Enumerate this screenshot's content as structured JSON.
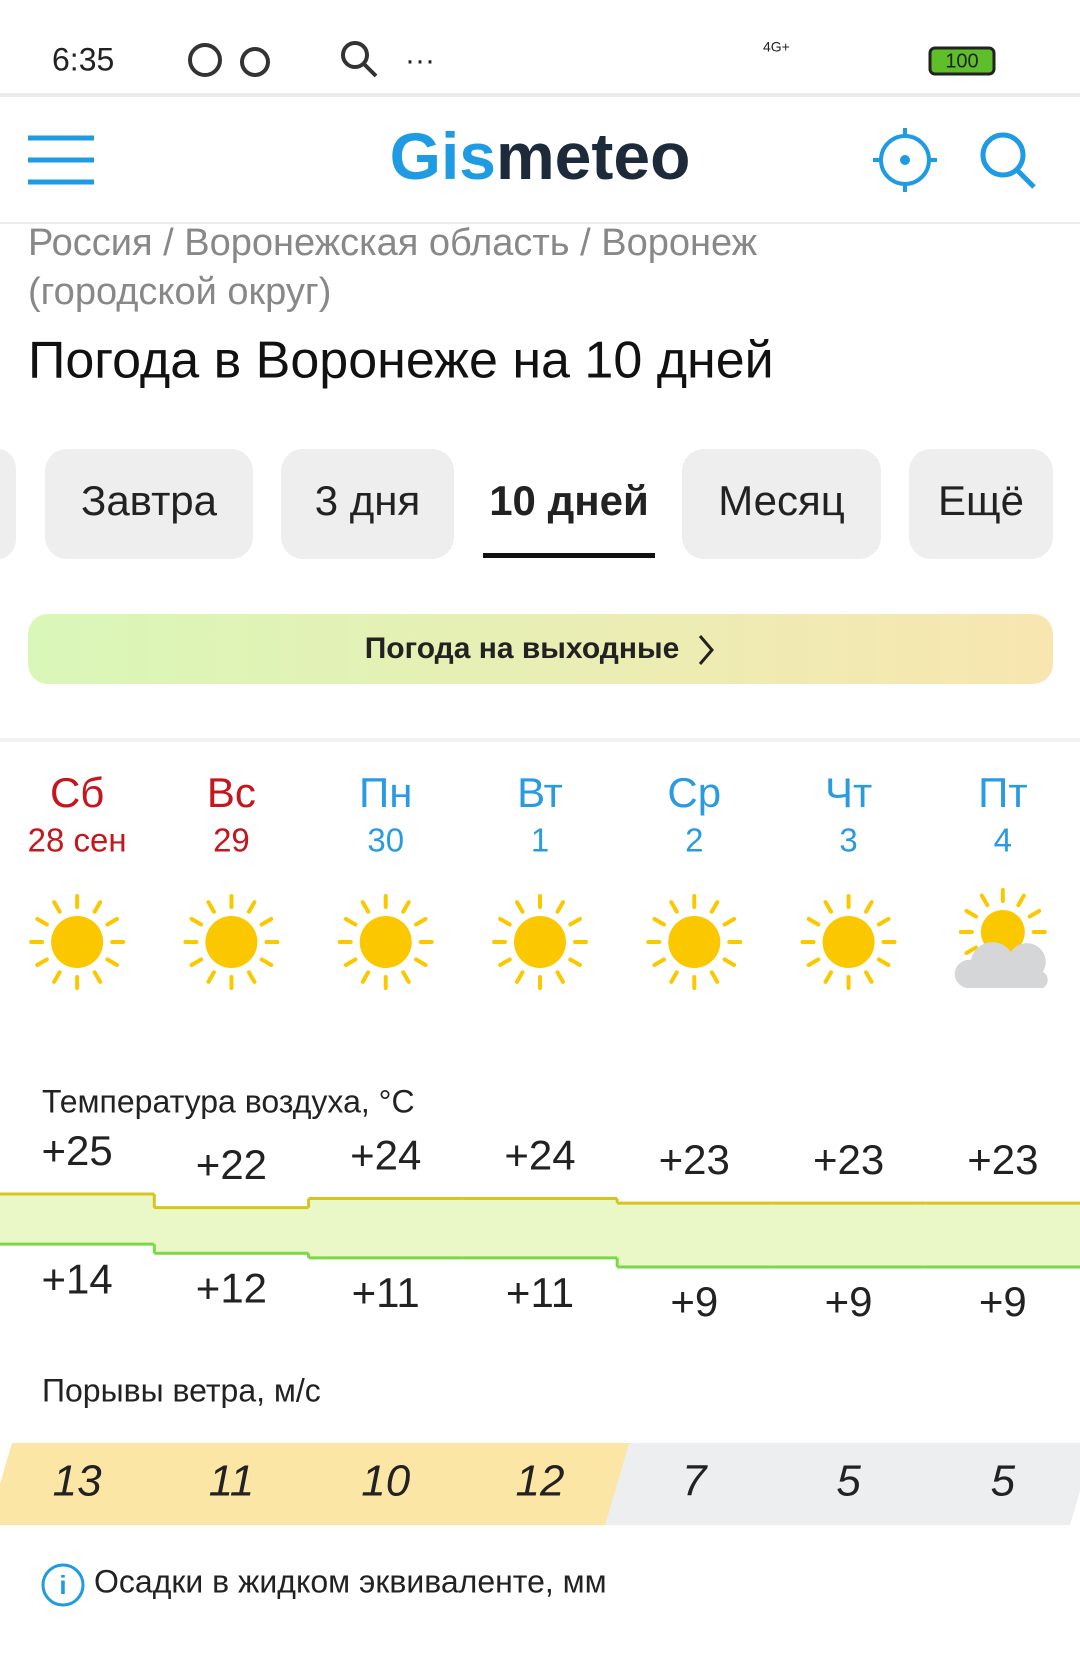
{
  "status_bar": {
    "time": "6:35",
    "network": "4G+",
    "battery": "100"
  },
  "header": {
    "logo": {
      "part1": "Gis",
      "part2": "meteo"
    }
  },
  "breadcrumb": {
    "line1": "Россия / Воронежская область / Воронеж",
    "line2": "(городской округ)"
  },
  "title": "Погода в Воронеже на 10 дней",
  "tabs": {
    "items": [
      "Завтра",
      "3 дня",
      "10 дней",
      "Месяц",
      "Ещё"
    ],
    "active": 2
  },
  "weekend_button": "Погода на выходные",
  "forecast": {
    "days": [
      {
        "name": "Сб",
        "date": "28 сен",
        "color": "#c4161c",
        "icon": "sun"
      },
      {
        "name": "Вс",
        "date": "29",
        "color": "#c4161c",
        "icon": "sun"
      },
      {
        "name": "Пн",
        "date": "30",
        "color": "#2a9be0",
        "icon": "sun"
      },
      {
        "name": "Вт",
        "date": "1",
        "color": "#2a9be0",
        "icon": "sun"
      },
      {
        "name": "Ср",
        "date": "2",
        "color": "#2a9be0",
        "icon": "sun"
      },
      {
        "name": "Чт",
        "date": "3",
        "color": "#2a9be0",
        "icon": "sun"
      },
      {
        "name": "Пт",
        "date": "4",
        "color": "#2a9be0",
        "icon": "sun-cloud"
      }
    ],
    "temperature": {
      "label": "Температура воздуха, °C",
      "max": [
        {
          "value": 25,
          "label": "+25"
        },
        {
          "value": 22,
          "label": "+22"
        },
        {
          "value": 24,
          "label": "+24"
        },
        {
          "value": 24,
          "label": "+24"
        },
        {
          "value": 23,
          "label": "+23"
        },
        {
          "value": 23,
          "label": "+23"
        },
        {
          "value": 23,
          "label": "+23"
        }
      ],
      "min": [
        {
          "value": 14,
          "label": "+14"
        },
        {
          "value": 12,
          "label": "+12"
        },
        {
          "value": 11,
          "label": "+11"
        },
        {
          "value": 11,
          "label": "+11"
        },
        {
          "value": 9,
          "label": "+9"
        },
        {
          "value": 9,
          "label": "+9"
        },
        {
          "value": 9,
          "label": "+9"
        }
      ]
    },
    "wind": {
      "label": "Порывы ветра, м/с",
      "values": [
        13,
        11,
        10,
        12,
        7,
        5,
        5
      ],
      "colors": [
        "#fbe6a6",
        "#fbe6a6",
        "#fbe6a6",
        "#fbe6a6",
        "#eceef0",
        "#eceef0",
        "#eceef0"
      ]
    },
    "precipitation_label": "Осадки в жидком эквиваленте, мм"
  }
}
